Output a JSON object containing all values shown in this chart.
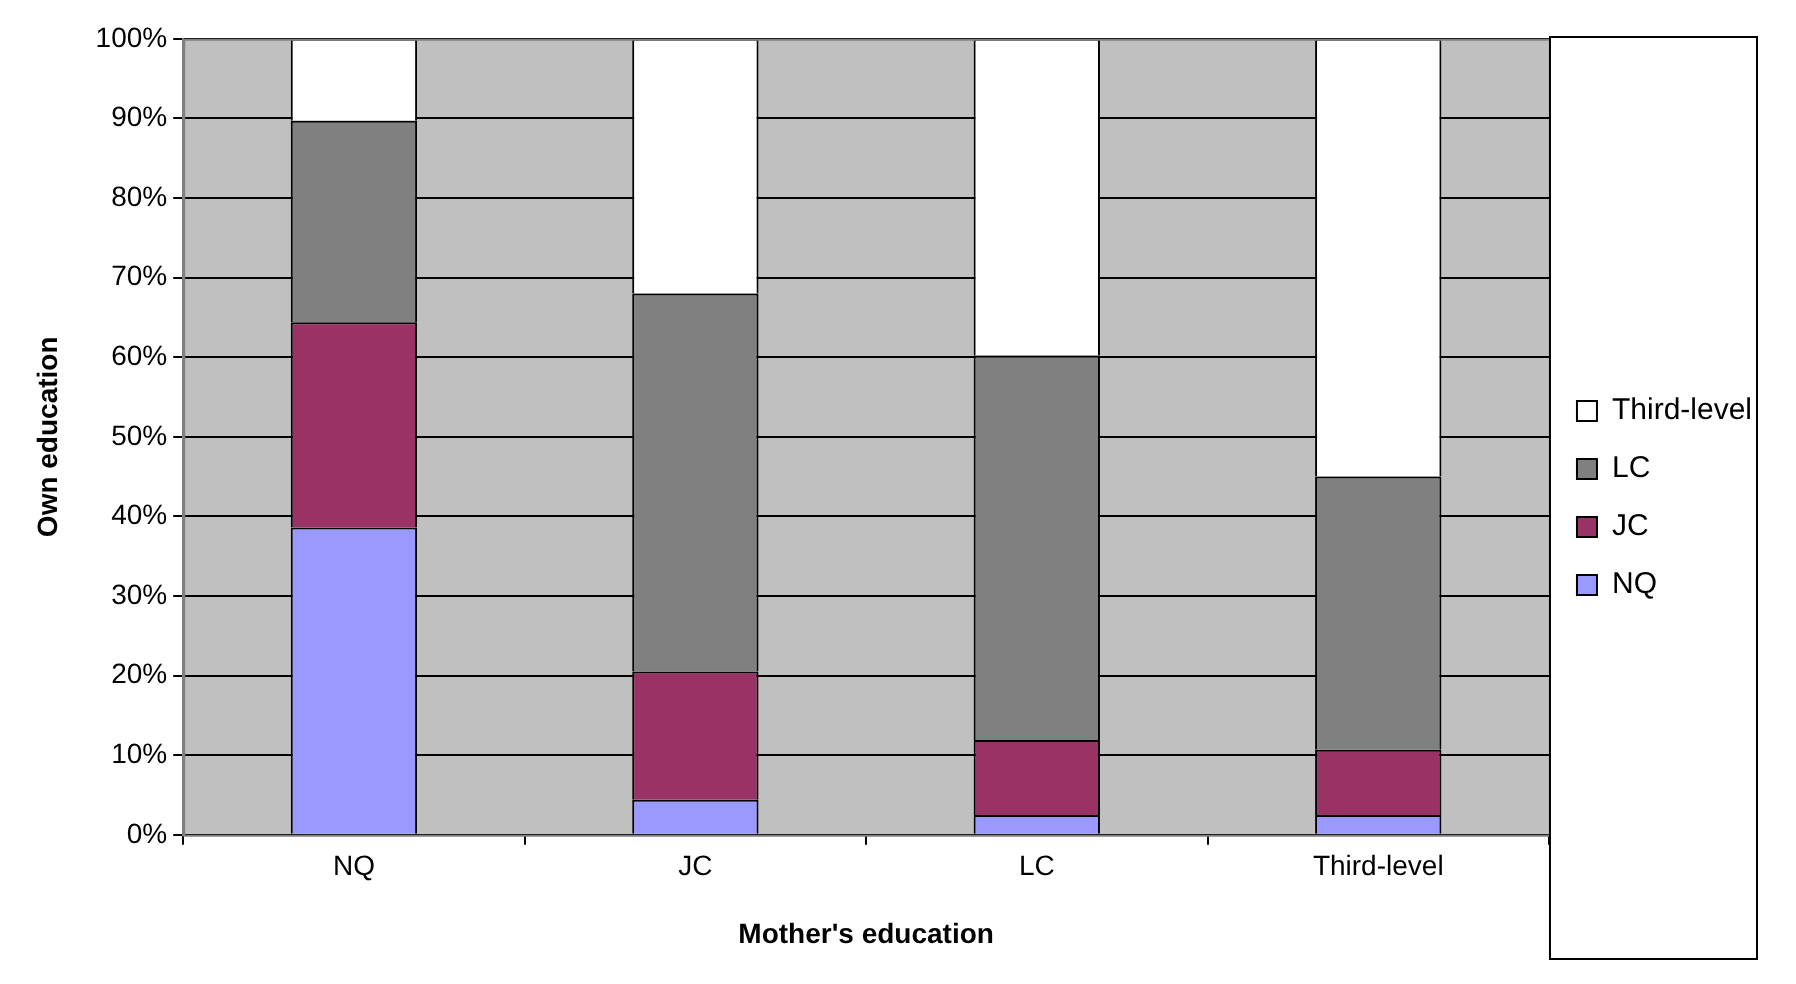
{
  "chart_data": {
    "type": "bar",
    "stacked": true,
    "xlabel": "Mother's education",
    "ylabel": "Own education",
    "categories": [
      "NQ",
      "JC",
      "LC",
      "Third-level"
    ],
    "series": [
      {
        "name": "NQ",
        "color": "#9999ff",
        "values": [
          38.6,
          4.4,
          2.5,
          2.5
        ]
      },
      {
        "name": "JC",
        "color": "#993366",
        "values": [
          25.8,
          16.1,
          9.4,
          8.2
        ]
      },
      {
        "name": "LC",
        "color": "#808080",
        "values": [
          25.3,
          47.5,
          48.3,
          34.3
        ]
      },
      {
        "name": "Third-level",
        "color": "#ffffff",
        "values": [
          10.3,
          32,
          39.8,
          55
        ]
      }
    ],
    "ylim": [
      0,
      100
    ],
    "yticks": [
      {
        "value": 0,
        "label": "0%"
      },
      {
        "value": 10,
        "label": "10%"
      },
      {
        "value": 20,
        "label": "20%"
      },
      {
        "value": 30,
        "label": "30%"
      },
      {
        "value": 40,
        "label": "40%"
      },
      {
        "value": 50,
        "label": "50%"
      },
      {
        "value": 60,
        "label": "60%"
      },
      {
        "value": 70,
        "label": "70%"
      },
      {
        "value": 80,
        "label": "80%"
      },
      {
        "value": 90,
        "label": "90%"
      },
      {
        "value": 100,
        "label": "100%"
      }
    ],
    "grid": "y",
    "legend": "right"
  }
}
